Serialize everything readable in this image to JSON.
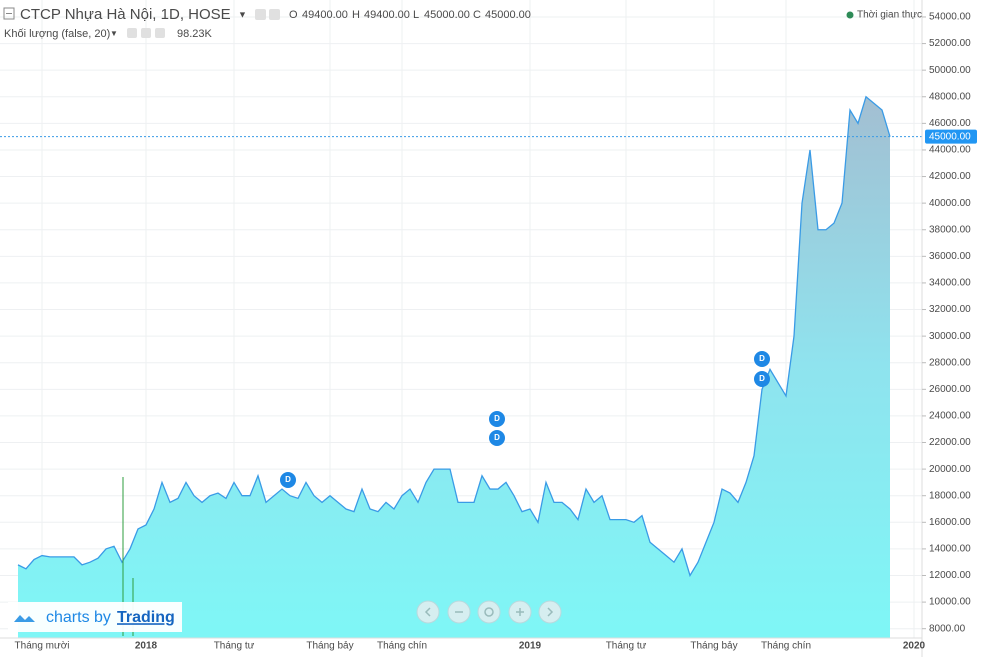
{
  "header": {
    "title": "CTCP Nhựa Hà Nội, 1D, HOSE",
    "o_label": "O",
    "o": "49400.00",
    "h_label": "H",
    "h": "49400.00",
    "l_label": "L",
    "l": "45000.00",
    "c_label": "C",
    "c": "45000.00",
    "realtime": "Thời gian thực",
    "volume_label": "Khối lượng (false, 20)",
    "volume": "98.23K"
  },
  "badge": {
    "prefix": "charts by",
    "brand": "Trading"
  },
  "chart_data": {
    "type": "area",
    "color": "#3a9be6",
    "categories": [
      null,
      null,
      null,
      "Tháng mười",
      null,
      null,
      null,
      null,
      null,
      null,
      null,
      null,
      null,
      null,
      null,
      null,
      "2018",
      null,
      null,
      null,
      null,
      null,
      null,
      null,
      null,
      null,
      null,
      "Tháng tư",
      null,
      null,
      null,
      null,
      null,
      null,
      null,
      null,
      null,
      null,
      null,
      "Tháng bảy",
      null,
      null,
      null,
      null,
      null,
      null,
      null,
      null,
      "Tháng chín",
      null,
      null,
      null,
      null,
      null,
      null,
      null,
      null,
      null,
      null,
      null,
      null,
      null,
      null,
      null,
      "2019",
      null,
      null,
      null,
      null,
      null,
      null,
      null,
      null,
      null,
      null,
      null,
      "Tháng tư",
      null,
      null,
      null,
      null,
      null,
      null,
      null,
      null,
      null,
      null,
      "Tháng bảy",
      null,
      null,
      null,
      null,
      null,
      null,
      null,
      null,
      "Tháng chín",
      null,
      null,
      null,
      null,
      null,
      null,
      null,
      null,
      null,
      null,
      null,
      null,
      null,
      null,
      null,
      "2020"
    ],
    "values": [
      12800,
      12500,
      13200,
      13500,
      13400,
      13400,
      13400,
      13400,
      12800,
      13000,
      13300,
      14000,
      14200,
      13000,
      14000,
      15500,
      15800,
      17000,
      19000,
      17500,
      17800,
      19000,
      18000,
      17500,
      18000,
      18200,
      17800,
      19000,
      18000,
      18000,
      19500,
      17500,
      18000,
      18500,
      18000,
      17800,
      19000,
      18000,
      17500,
      18000,
      17500,
      17000,
      16800,
      18500,
      17000,
      16800,
      17500,
      17000,
      18000,
      18500,
      17500,
      19000,
      20000,
      20000,
      20000,
      17500,
      17500,
      17500,
      19500,
      18500,
      18500,
      19000,
      18000,
      16800,
      17000,
      16000,
      19000,
      17500,
      17500,
      17000,
      16200,
      18500,
      17500,
      18000,
      16200,
      16200,
      16200,
      16000,
      16500,
      14500,
      14000,
      13500,
      13000,
      14000,
      12000,
      13000,
      14500,
      16000,
      18500,
      18200,
      17500,
      19000,
      21000,
      26000,
      27500,
      26500,
      25500,
      30000,
      40000,
      44000,
      38000,
      38000,
      38500,
      40000,
      47000,
      46000,
      48000,
      47500,
      47000,
      45000,
      null,
      null,
      null
    ],
    "ylim": [
      7300,
      54900
    ],
    "yticks": [
      {
        "value": 8000,
        "label": "8000.00"
      },
      {
        "value": 10000,
        "label": "10000.00"
      },
      {
        "value": 12000,
        "label": "12000.00"
      },
      {
        "value": 14000,
        "label": "14000.00"
      },
      {
        "value": 16000,
        "label": "16000.00"
      },
      {
        "value": 18000,
        "label": "18000.00"
      },
      {
        "value": 20000,
        "label": "20000.00"
      },
      {
        "value": 22000,
        "label": "22000.00"
      },
      {
        "value": 24000,
        "label": "24000.00"
      },
      {
        "value": 26000,
        "label": "26000.00"
      },
      {
        "value": 28000,
        "label": "28000.00"
      },
      {
        "value": 30000,
        "label": "30000.00"
      },
      {
        "value": 32000,
        "label": "32000.00"
      },
      {
        "value": 34000,
        "label": "34000.00"
      },
      {
        "value": 36000,
        "label": "36000.00"
      },
      {
        "value": 38000,
        "label": "38000.00"
      },
      {
        "value": 40000,
        "label": "40000.00"
      },
      {
        "value": 42000,
        "label": "42000.00"
      },
      {
        "value": 44000,
        "label": "44000.00"
      },
      {
        "value": 46000,
        "label": "46000.00"
      },
      {
        "value": 48000,
        "label": "48000.00"
      },
      {
        "value": 50000,
        "label": "50000.00"
      },
      {
        "value": 52000,
        "label": "52000.00"
      },
      {
        "value": 54000,
        "label": "54000.00"
      }
    ],
    "last_price": {
      "value": 45000,
      "label": "45000.00"
    },
    "grid": true
  }
}
